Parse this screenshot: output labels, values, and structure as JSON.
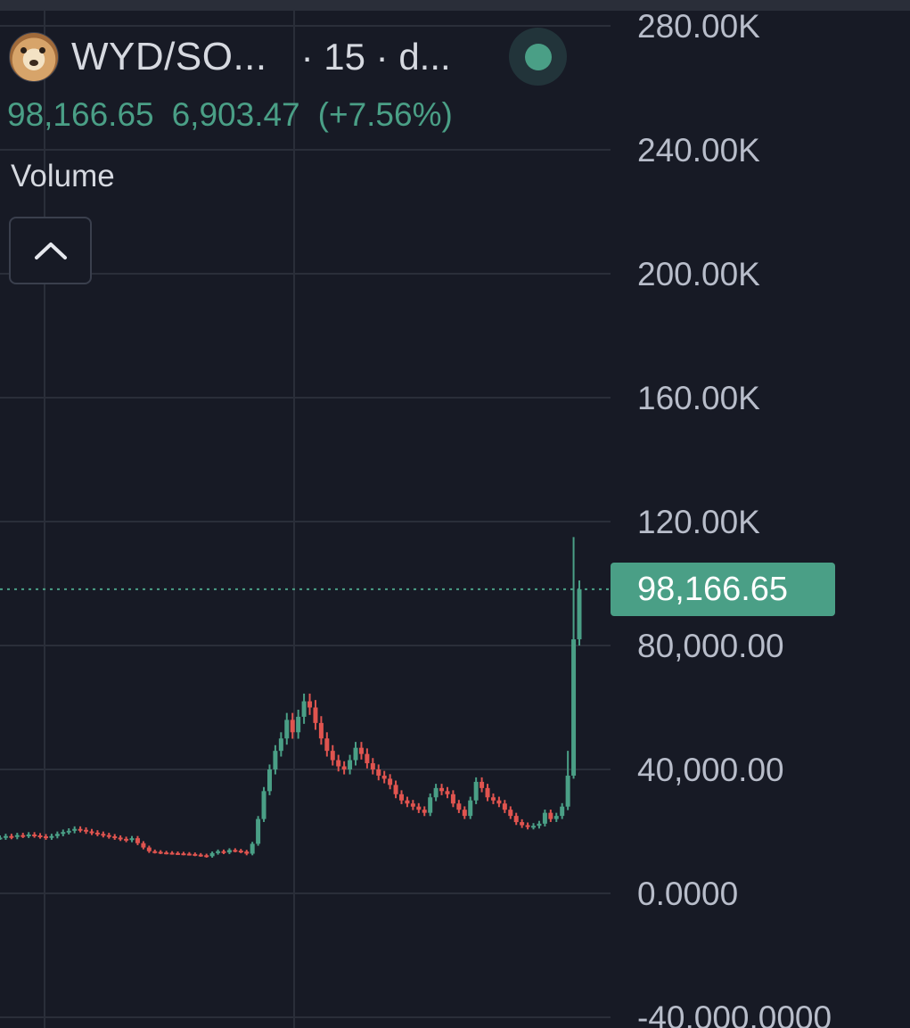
{
  "header": {
    "symbol": "WYD/SO...",
    "interval": "· 15 · d...",
    "avatar_icon": "shiba-dog-avatar-icon",
    "live_icon": "live-status-dot-icon"
  },
  "price_row": {
    "last": "98,166.65",
    "change": "6,903.47",
    "change_pct": "(+7.56%)"
  },
  "indicator": {
    "label": "Volume",
    "collapse_icon": "chevron-up-icon"
  },
  "price_tag": "98,166.65",
  "colors": {
    "background": "#171a25",
    "up": "#4a9f86",
    "down": "#e0544f",
    "grid": "#2a2e39",
    "axis_text": "#b8bdca"
  },
  "chart_data": {
    "type": "candlestick",
    "y_axis": {
      "ticks": [
        280000,
        240000,
        200000,
        160000,
        120000,
        80000,
        40000,
        0,
        -40000
      ],
      "tick_labels": [
        "280.00K",
        "240.00K",
        "200.00K",
        "160.00K",
        "120.00K",
        "80,000.00",
        "40,000.00",
        "0.0000",
        "-40,000.0000"
      ],
      "ylim": [
        -40000,
        290000
      ],
      "position": "right"
    },
    "grid": true,
    "last_price": 98166.65,
    "closes": [
      18000,
      18500,
      18200,
      18800,
      18600,
      19000,
      18700,
      18400,
      18000,
      18500,
      19200,
      19800,
      20200,
      20800,
      20500,
      20000,
      19600,
      19200,
      18800,
      18400,
      18000,
      17600,
      17200,
      17800,
      16200,
      14800,
      13600,
      13400,
      13200,
      13100,
      13000,
      12900,
      12800,
      12700,
      12500,
      12300,
      12000,
      13000,
      13600,
      13200,
      14000,
      13800,
      13500,
      12800,
      16000,
      24000,
      33000,
      40000,
      46000,
      50000,
      56000,
      52000,
      57000,
      62000,
      60000,
      55000,
      50000,
      46000,
      43000,
      41000,
      40000,
      43000,
      47000,
      45000,
      42000,
      40000,
      38000,
      37000,
      35000,
      32000,
      30000,
      29000,
      28000,
      27000,
      26000,
      31000,
      34000,
      33000,
      32000,
      29000,
      27000,
      25000,
      30000,
      36000,
      34000,
      31000,
      30000,
      29000,
      27000,
      25000,
      23000,
      22000,
      21500,
      21800,
      22500,
      26000,
      24000,
      25000,
      28000,
      38000,
      82000,
      98166.65
    ],
    "highs": {
      "99": 46000,
      "100": 115000,
      "101": 101000
    },
    "lows": {
      "100": 37000,
      "101": 80000
    }
  }
}
